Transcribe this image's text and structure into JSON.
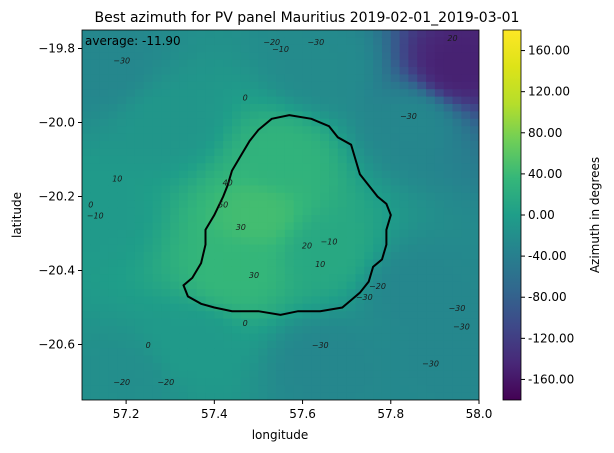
{
  "chart_data": {
    "type": "heatmap",
    "title": "Best azimuth for PV panel Mauritius 2019-02-01_2019-03-01",
    "xlabel": "longitude",
    "ylabel": "latitude",
    "xlim": [
      57.1,
      58.0
    ],
    "ylim": [
      -20.75,
      -19.75
    ],
    "x_ticks": [
      57.2,
      57.4,
      57.6,
      57.8,
      58.0
    ],
    "x_tick_labels": [
      "57.2",
      "57.4",
      "57.6",
      "57.8",
      "58.0"
    ],
    "y_ticks": [
      -19.8,
      -20.0,
      -20.2,
      -20.4,
      -20.6
    ],
    "y_tick_labels": [
      "−19.8",
      "−20.0",
      "−20.2",
      "−20.4",
      "−20.6"
    ],
    "annotation": "average: -11.90",
    "colorbar": {
      "label": "Azimuth in degrees",
      "range": [
        -180,
        180
      ],
      "colormap": "viridis",
      "ticks": [
        160,
        120,
        80,
        40,
        0,
        -40,
        -80,
        -120,
        -160
      ],
      "tick_labels": [
        "160.00",
        "120.00",
        "80.00",
        "40.00",
        "0.00",
        "-40.00",
        "-80.00",
        "-120.00",
        "-160.00"
      ]
    },
    "contour_labels": [
      {
        "text": "−20",
        "x": 57.53,
        "y": -19.79
      },
      {
        "text": "−10",
        "x": 57.55,
        "y": -19.81
      },
      {
        "text": "−30",
        "x": 57.63,
        "y": -19.79
      },
      {
        "text": "−30",
        "x": 57.19,
        "y": -19.84
      },
      {
        "text": "20",
        "x": 57.94,
        "y": -19.78
      },
      {
        "text": "0",
        "x": 57.47,
        "y": -19.94
      },
      {
        "text": "−30",
        "x": 57.84,
        "y": -19.99
      },
      {
        "text": "10",
        "x": 57.18,
        "y": -20.16
      },
      {
        "text": "40",
        "x": 57.43,
        "y": -20.17
      },
      {
        "text": "50",
        "x": 57.42,
        "y": -20.23
      },
      {
        "text": "30",
        "x": 57.46,
        "y": -20.29
      },
      {
        "text": "0",
        "x": 57.12,
        "y": -20.23
      },
      {
        "text": "−10",
        "x": 57.13,
        "y": -20.26
      },
      {
        "text": "20",
        "x": 57.61,
        "y": -20.34
      },
      {
        "text": "−10",
        "x": 57.66,
        "y": -20.33
      },
      {
        "text": "10",
        "x": 57.64,
        "y": -20.39
      },
      {
        "text": "30",
        "x": 57.49,
        "y": -20.42
      },
      {
        "text": "−20",
        "x": 57.77,
        "y": -20.45
      },
      {
        "text": "−30",
        "x": 57.74,
        "y": -20.48
      },
      {
        "text": "−30",
        "x": 57.95,
        "y": -20.51
      },
      {
        "text": "−30",
        "x": 57.96,
        "y": -20.56
      },
      {
        "text": "0",
        "x": 57.47,
        "y": -20.55
      },
      {
        "text": "0",
        "x": 57.25,
        "y": -20.61
      },
      {
        "text": "−30",
        "x": 57.64,
        "y": -20.61
      },
      {
        "text": "−30",
        "x": 57.89,
        "y": -20.66
      },
      {
        "text": "−20",
        "x": 57.19,
        "y": -20.71
      },
      {
        "text": "−20",
        "x": 57.29,
        "y": -20.71
      }
    ],
    "island_outline": [
      [
        57.53,
        -19.99
      ],
      [
        57.57,
        -19.98
      ],
      [
        57.62,
        -19.99
      ],
      [
        57.66,
        -20.01
      ],
      [
        57.68,
        -20.04
      ],
      [
        57.71,
        -20.06
      ],
      [
        57.72,
        -20.1
      ],
      [
        57.73,
        -20.14
      ],
      [
        57.75,
        -20.17
      ],
      [
        57.77,
        -20.2
      ],
      [
        57.79,
        -20.22
      ],
      [
        57.8,
        -20.25
      ],
      [
        57.79,
        -20.29
      ],
      [
        57.79,
        -20.33
      ],
      [
        57.78,
        -20.37
      ],
      [
        57.76,
        -20.39
      ],
      [
        57.75,
        -20.43
      ],
      [
        57.73,
        -20.46
      ],
      [
        57.71,
        -20.48
      ],
      [
        57.69,
        -20.5
      ],
      [
        57.64,
        -20.51
      ],
      [
        57.59,
        -20.51
      ],
      [
        57.55,
        -20.52
      ],
      [
        57.5,
        -20.51
      ],
      [
        57.44,
        -20.51
      ],
      [
        57.4,
        -20.5
      ],
      [
        57.37,
        -20.49
      ],
      [
        57.34,
        -20.47
      ],
      [
        57.33,
        -20.44
      ],
      [
        57.35,
        -20.42
      ],
      [
        57.37,
        -20.38
      ],
      [
        57.38,
        -20.33
      ],
      [
        57.38,
        -20.29
      ],
      [
        57.4,
        -20.25
      ],
      [
        57.42,
        -20.2
      ],
      [
        57.43,
        -20.17
      ],
      [
        57.44,
        -20.13
      ],
      [
        57.46,
        -20.09
      ],
      [
        57.48,
        -20.05
      ],
      [
        57.5,
        -20.02
      ],
      [
        57.53,
        -19.99
      ]
    ],
    "field_points": [
      {
        "x": 57.5,
        "y": -20.25,
        "v": 45
      },
      {
        "x": 57.55,
        "y": -20.1,
        "v": 30
      },
      {
        "x": 57.45,
        "y": -20.4,
        "v": 35
      },
      {
        "x": 57.65,
        "y": -20.35,
        "v": 15
      },
      {
        "x": 57.15,
        "y": -19.85,
        "v": -30
      },
      {
        "x": 57.65,
        "y": -19.85,
        "v": -25
      },
      {
        "x": 57.85,
        "y": -20.0,
        "v": -30
      },
      {
        "x": 57.85,
        "y": -20.45,
        "v": -30
      },
      {
        "x": 57.35,
        "y": -20.6,
        "v": -5
      },
      {
        "x": 57.65,
        "y": -20.65,
        "v": -30
      },
      {
        "x": 57.2,
        "y": -20.7,
        "v": -20
      },
      {
        "x": 57.12,
        "y": -20.25,
        "v": -5
      },
      {
        "x": 57.3,
        "y": -20.0,
        "v": -10
      },
      {
        "x": 57.95,
        "y": -19.85,
        "v": -150
      },
      {
        "x": 57.95,
        "y": -20.6,
        "v": -30
      }
    ]
  }
}
